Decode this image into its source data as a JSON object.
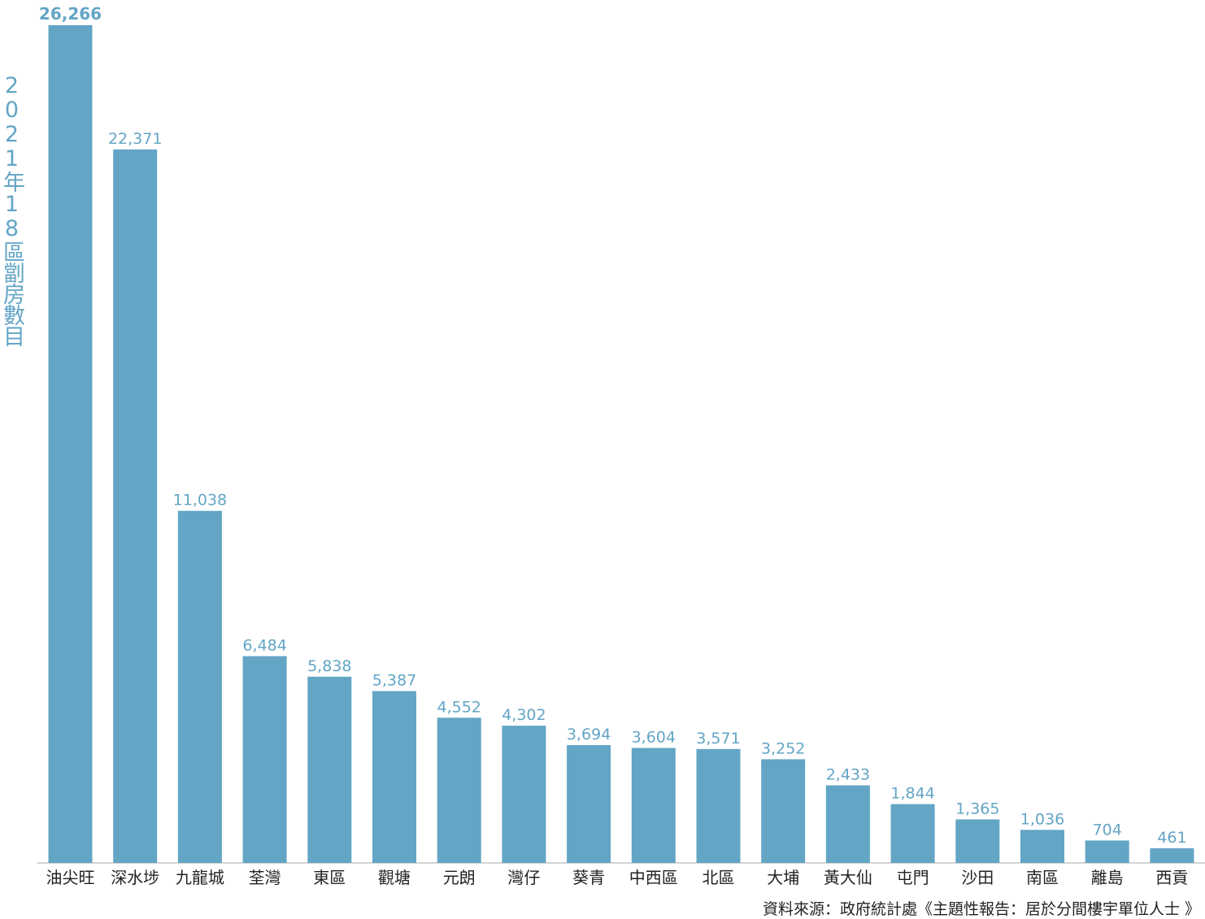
{
  "chart_data": {
    "type": "bar",
    "ylabel": "2021年18區劏房數目",
    "source": "資料來源：政府統計處《主題性報告：居於分間樓宇單位人士 》",
    "categories": [
      "油尖旺",
      "深水埗",
      "九龍城",
      "荃灣",
      "東區",
      "觀塘",
      "元朗",
      "灣仔",
      "葵青",
      "中西區",
      "北區",
      "大埔",
      "黃大仙",
      "屯門",
      "沙田",
      "南區",
      "離島",
      "西貢"
    ],
    "values": [
      26266,
      22371,
      11038,
      6484,
      5838,
      5387,
      4552,
      4302,
      3694,
      3604,
      3571,
      3252,
      2433,
      1844,
      1365,
      1036,
      704,
      461
    ],
    "value_labels": [
      "26,266",
      "22,371",
      "11,038",
      "6,484",
      "5,838",
      "5,387",
      "4,552",
      "4,302",
      "3,694",
      "3,604",
      "3,571",
      "3,252",
      "2,433",
      "1,844",
      "1,365",
      "1,036",
      "704",
      "461"
    ],
    "ylim": [
      0,
      26266
    ],
    "bar_color": "#63a5c5",
    "label_color": "#63a5c5",
    "grid": false,
    "legend": "none"
  }
}
